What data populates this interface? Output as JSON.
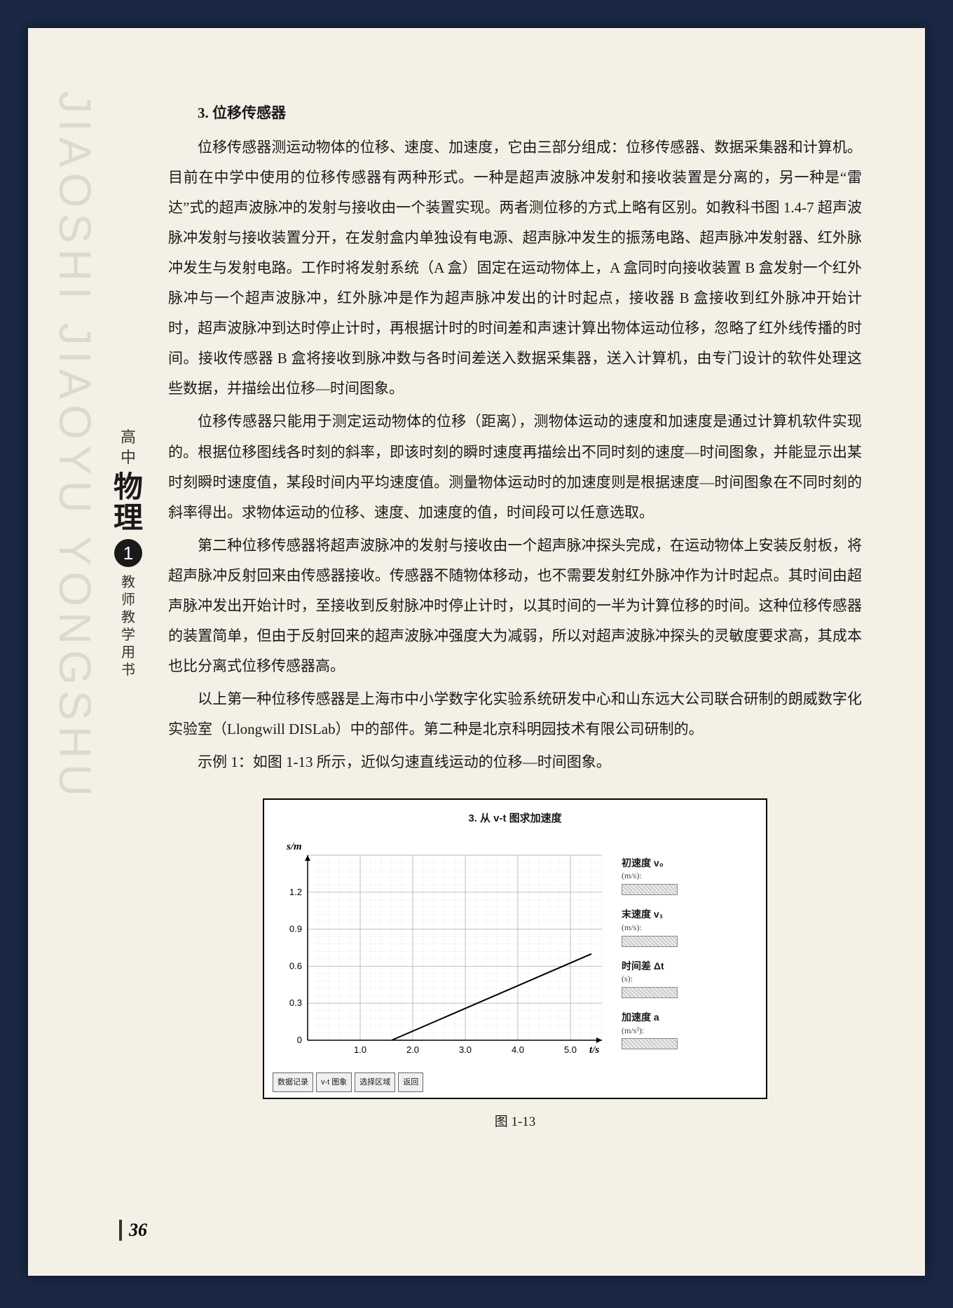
{
  "watermark": "JIAOSHI JIAOYU YONGSHU",
  "side": {
    "grade": "高中",
    "subject": "物理",
    "volume": "1",
    "role": "教师教学用书"
  },
  "section_title": "3. 位移传感器",
  "paragraphs": [
    "位移传感器测运动物体的位移、速度、加速度，它由三部分组成：位移传感器、数据采集器和计算机。目前在中学中使用的位移传感器有两种形式。一种是超声波脉冲发射和接收装置是分离的，另一种是“雷达”式的超声波脉冲的发射与接收由一个装置实现。两者测位移的方式上略有区别。如教科书图 1.4-7 超声波脉冲发射与接收装置分开，在发射盒内单独设有电源、超声脉冲发生的振荡电路、超声脉冲发射器、红外脉冲发生与发射电路。工作时将发射系统（A 盒）固定在运动物体上，A 盒同时向接收装置 B 盒发射一个红外脉冲与一个超声波脉冲，红外脉冲是作为超声脉冲发出的计时起点，接收器 B 盒接收到红外脉冲开始计时，超声波脉冲到达时停止计时，再根据计时的时间差和声速计算出物体运动位移，忽略了红外线传播的时间。接收传感器 B 盒将接收到脉冲数与各时间差送入数据采集器，送入计算机，由专门设计的软件处理这些数据，并描绘出位移—时间图象。",
    "位移传感器只能用于测定运动物体的位移（距离），测物体运动的速度和加速度是通过计算机软件实现的。根据位移图线各时刻的斜率，即该时刻的瞬时速度再描绘出不同时刻的速度—时间图象，并能显示出某时刻瞬时速度值，某段时间内平均速度值。测量物体运动时的加速度则是根据速度—时间图象在不同时刻的斜率得出。求物体运动的位移、速度、加速度的值，时间段可以任意选取。",
    "第二种位移传感器将超声波脉冲的发射与接收由一个超声脉冲探头完成，在运动物体上安装反射板，将超声脉冲反射回来由传感器接收。传感器不随物体移动，也不需要发射红外脉冲作为计时起点。其时间由超声脉冲发出开始计时，至接收到反射脉冲时停止计时，以其时间的一半为计算位移的时间。这种位移传感器的装置简单，但由于反射回来的超声波脉冲强度大为减弱，所以对超声波脉冲探头的灵敏度要求高，其成本也比分离式位移传感器高。",
    "以上第一种位移传感器是上海市中小学数字化实验系统研发中心和山东远大公司联合研制的朗威数字化实验室（Llongwill DISLab）中的部件。第二种是北京科明园技术有限公司研制的。",
    "示例 1：如图 1-13 所示，近似匀速直线运动的位移—时间图象。"
  ],
  "chart": {
    "title": "3. 从 v-t 图求加速度",
    "y_label": "s/m",
    "x_label": "t/s",
    "x_ticks": [
      "1.0",
      "2.0",
      "3.0",
      "4.0",
      "5.0"
    ],
    "y_ticks": [
      "0",
      "0.3",
      "0.6",
      "0.9",
      "1.2"
    ],
    "xlim": [
      0,
      5.6
    ],
    "ylim": [
      0,
      1.5
    ],
    "line_points": [
      [
        1.6,
        0
      ],
      [
        5.4,
        0.7
      ]
    ],
    "line_color": "#000000",
    "line_width": 2,
    "grid_color": "#b8b8b8",
    "minor_grid": true,
    "background": "#ffffff",
    "legend": [
      {
        "label": "初速度 v₀",
        "unit": "(m/s):"
      },
      {
        "label": "末速度 v₁",
        "unit": "(m/s):"
      },
      {
        "label": "时间差 Δt",
        "unit": "(s):"
      },
      {
        "label": "加速度 a",
        "unit": "(m/s²):"
      }
    ],
    "footer_buttons": [
      "数据记录",
      "v-t 图象",
      "选择区域",
      "返回"
    ]
  },
  "figure_caption": "图 1-13",
  "page_number": "36"
}
